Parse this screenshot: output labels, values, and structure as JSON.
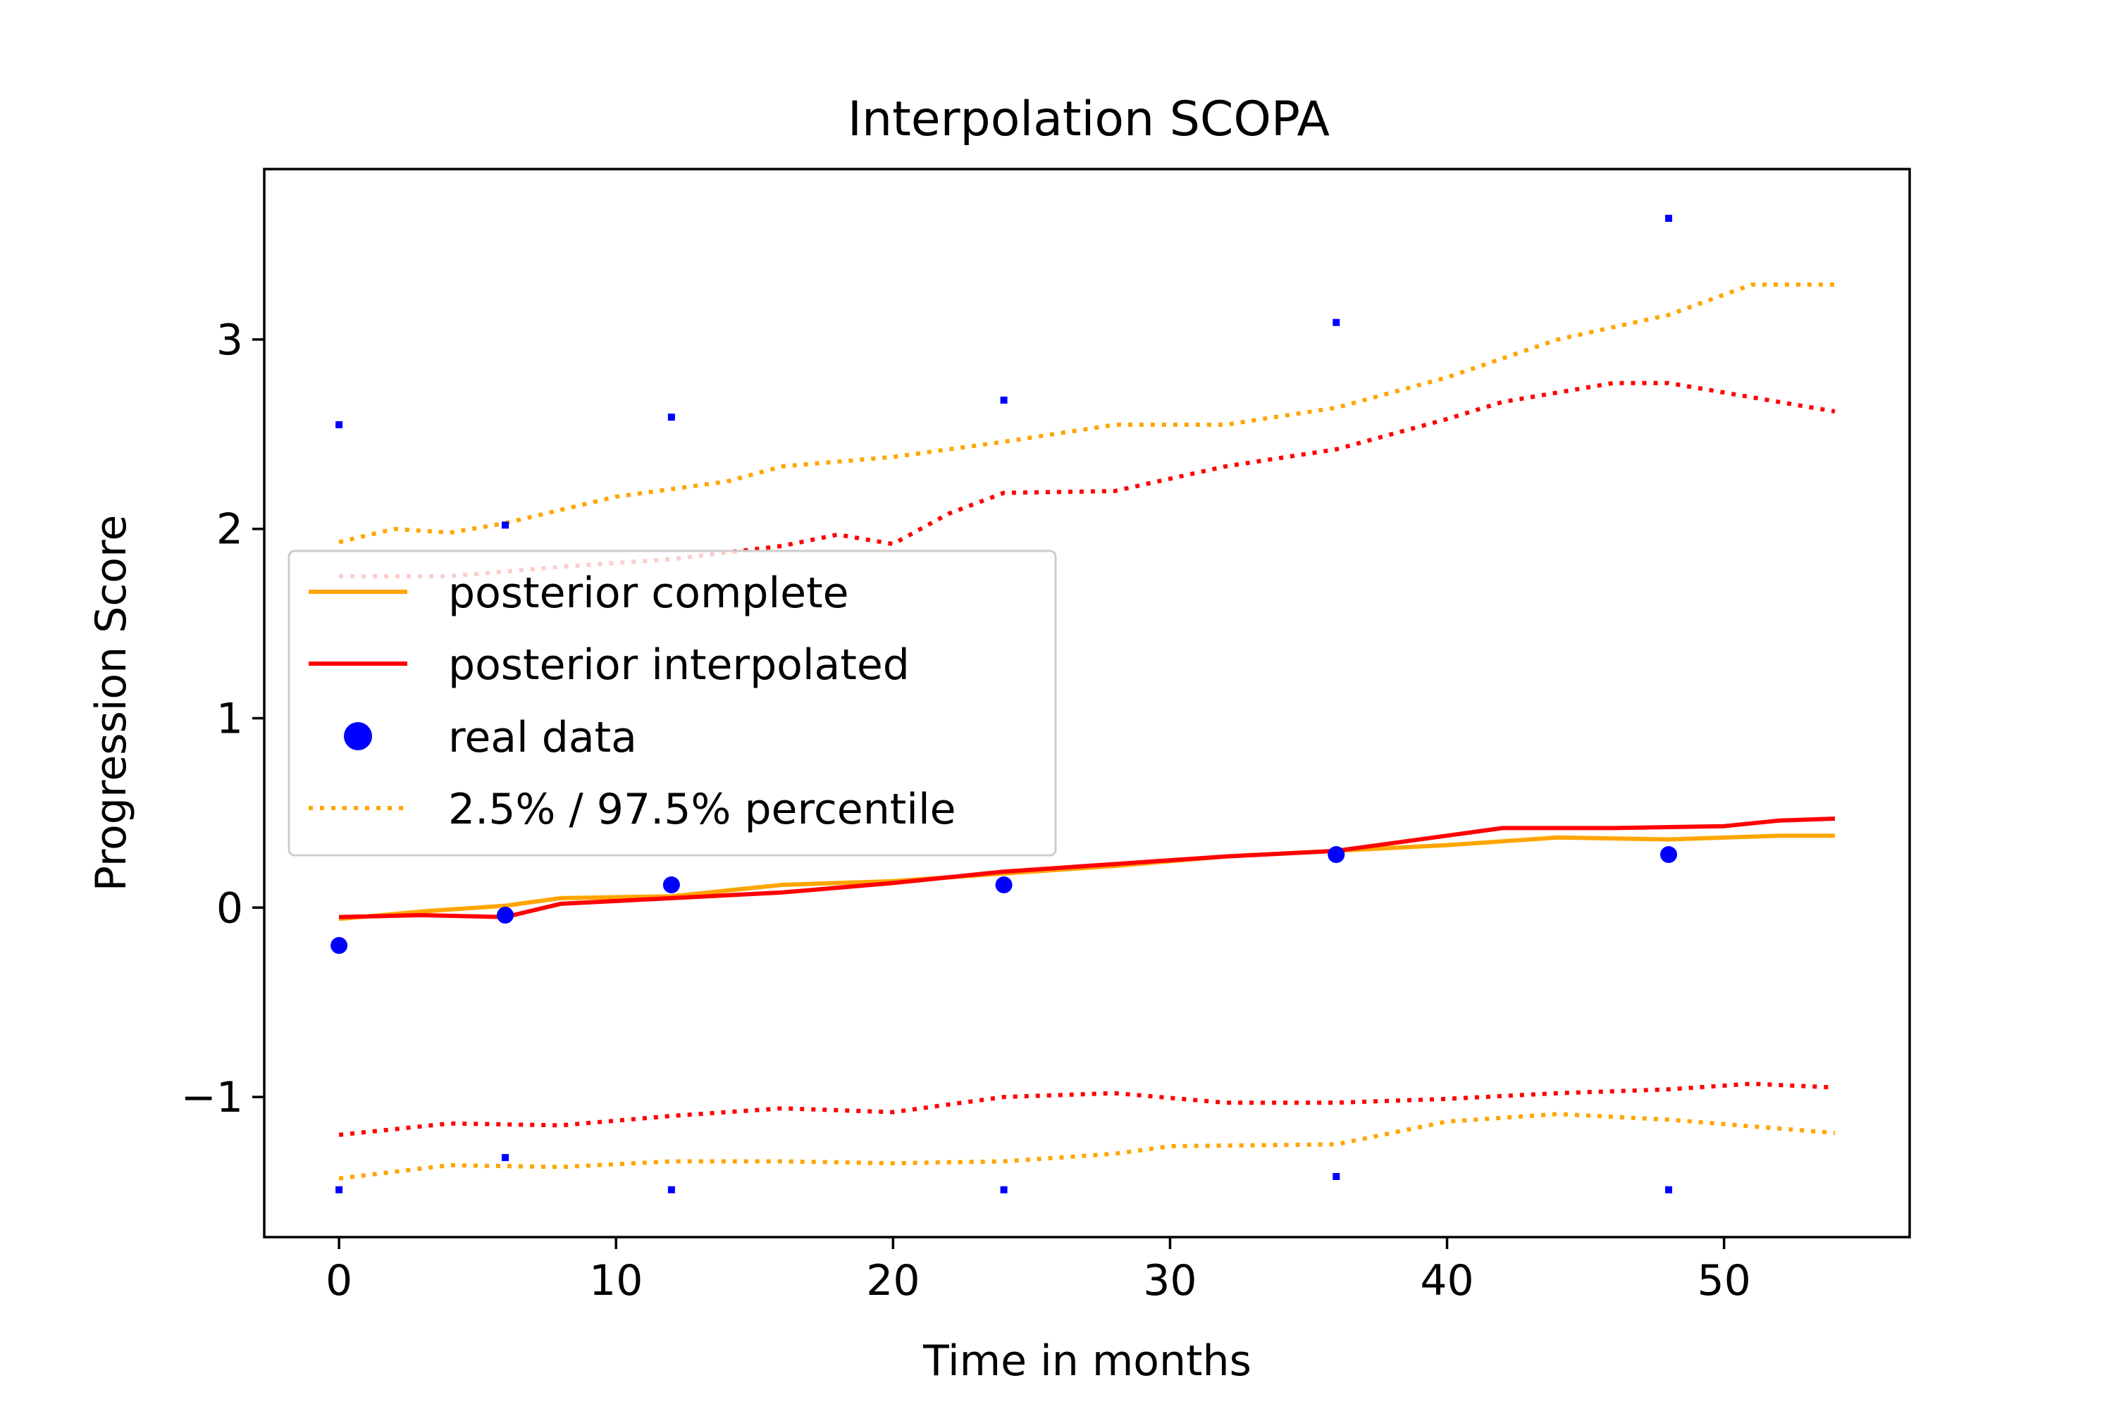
{
  "chart_data": {
    "type": "line",
    "title": "Interpolation SCOPA",
    "xlabel": "Time in months",
    "ylabel": "Progression Score",
    "xlim": [
      -2.7,
      56.7
    ],
    "ylim": [
      -1.74,
      3.9
    ],
    "xticks": [
      0,
      10,
      20,
      30,
      40,
      50
    ],
    "yticks": [
      -1,
      0,
      1,
      2,
      3
    ],
    "xtick_labels": [
      "0",
      "10",
      "20",
      "30",
      "40",
      "50"
    ],
    "ytick_labels": [
      "−1",
      "0",
      "1",
      "2",
      "3"
    ],
    "grid": false,
    "legend_position": "center-left",
    "colors": {
      "complete": "#FFA500",
      "interpolated": "#FF0000",
      "real": "#0000FF"
    },
    "legend": [
      {
        "label": "posterior complete",
        "style": "line",
        "color": "#FFA500"
      },
      {
        "label": "posterior interpolated",
        "style": "line",
        "color": "#FF0000"
      },
      {
        "label": "real data",
        "style": "marker",
        "color": "#0000FF"
      },
      {
        "label": "2.5% / 97.5% percentile",
        "style": "dotted",
        "color": "#FFA500"
      }
    ],
    "series": [
      {
        "name": "posterior complete",
        "color": "#FFA500",
        "style": "solid",
        "x": [
          0,
          3,
          6,
          8,
          12,
          16,
          20,
          24,
          28,
          32,
          36,
          40,
          44,
          48,
          52,
          54
        ],
        "y": [
          -0.06,
          -0.02,
          0.01,
          0.05,
          0.06,
          0.12,
          0.14,
          0.18,
          0.22,
          0.27,
          0.3,
          0.33,
          0.37,
          0.36,
          0.38,
          0.38
        ]
      },
      {
        "name": "posterior interpolated",
        "color": "#FF0000",
        "style": "solid",
        "x": [
          0,
          3,
          6,
          8,
          12,
          16,
          20,
          24,
          28,
          32,
          36,
          40,
          42,
          46,
          50,
          52,
          54
        ],
        "y": [
          -0.05,
          -0.04,
          -0.05,
          0.02,
          0.05,
          0.08,
          0.13,
          0.19,
          0.23,
          0.27,
          0.3,
          0.38,
          0.42,
          0.42,
          0.43,
          0.46,
          0.47
        ]
      },
      {
        "name": "2.5% / 97.5% percentile",
        "color": "#FFA500",
        "style": "dotted",
        "x": [
          0,
          2,
          4,
          6,
          10,
          14,
          16,
          20,
          24,
          28,
          32,
          36,
          40,
          44,
          48,
          51,
          54
        ],
        "y": [
          1.93,
          2.0,
          1.98,
          2.03,
          2.17,
          2.25,
          2.33,
          2.38,
          2.46,
          2.55,
          2.55,
          2.64,
          2.8,
          3.0,
          3.13,
          3.29,
          3.29
        ]
      },
      {
        "color": "#FF0000",
        "style": "dotted",
        "x": [
          0,
          4,
          8,
          12,
          16,
          18,
          20,
          22,
          24,
          28,
          32,
          36,
          40,
          42,
          46,
          48,
          54
        ],
        "y": [
          1.75,
          1.75,
          1.8,
          1.84,
          1.91,
          1.97,
          1.92,
          2.08,
          2.19,
          2.2,
          2.33,
          2.42,
          2.58,
          2.67,
          2.77,
          2.77,
          2.62
        ]
      },
      {
        "color": "#FFA500",
        "style": "dotted",
        "x": [
          0,
          4,
          8,
          12,
          16,
          20,
          24,
          28,
          30,
          36,
          40,
          44,
          48,
          54
        ],
        "y": [
          -1.43,
          -1.36,
          -1.37,
          -1.34,
          -1.34,
          -1.35,
          -1.34,
          -1.3,
          -1.26,
          -1.25,
          -1.13,
          -1.09,
          -1.12,
          -1.19
        ]
      },
      {
        "color": "#FF0000",
        "style": "dotted",
        "x": [
          0,
          4,
          8,
          12,
          16,
          20,
          24,
          28,
          32,
          36,
          40,
          44,
          48,
          51,
          54
        ],
        "y": [
          -1.2,
          -1.14,
          -1.15,
          -1.1,
          -1.06,
          -1.08,
          -1.0,
          -0.98,
          -1.03,
          -1.03,
          -1.01,
          -0.98,
          -0.96,
          -0.93,
          -0.95
        ]
      }
    ],
    "points": [
      {
        "name": "real data",
        "color": "#0000FF",
        "size": "large",
        "x": [
          0,
          6,
          12,
          24,
          36,
          48
        ],
        "y": [
          -0.2,
          -0.04,
          0.12,
          0.12,
          0.28,
          0.28
        ]
      },
      {
        "color": "#0000FF",
        "size": "small",
        "x": [
          0,
          6,
          12,
          24,
          36,
          48
        ],
        "y": [
          2.55,
          2.02,
          2.59,
          2.68,
          3.09,
          3.64
        ]
      },
      {
        "color": "#0000FF",
        "size": "small",
        "x": [
          0,
          6,
          12,
          24,
          36,
          48
        ],
        "y": [
          -1.49,
          -1.32,
          -1.49,
          -1.49,
          -1.42,
          -1.49
        ]
      }
    ]
  }
}
